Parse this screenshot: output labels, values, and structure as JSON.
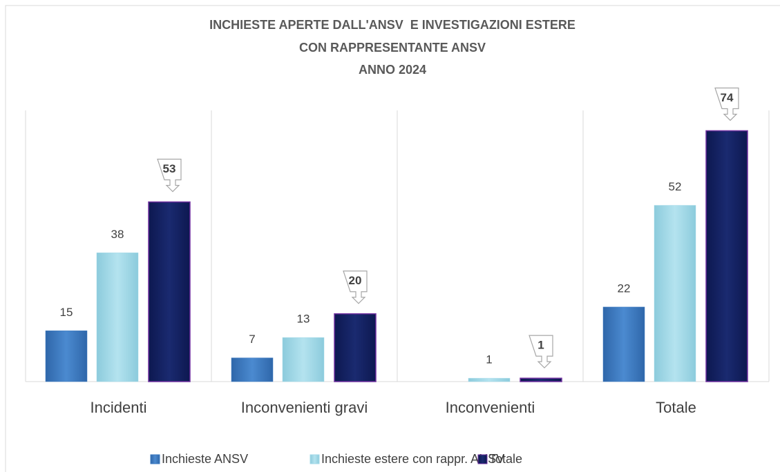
{
  "chart_data": {
    "type": "bar",
    "title": [
      "INCHIESTE APERTE DALL'ANSV  E INVESTIGAZIONI ESTERE",
      "CON RAPPRESENTANTE ANSV",
      "ANNO 2024"
    ],
    "categories": [
      "Incidenti",
      "Inconvenienti gravi",
      "Inconvenienti",
      "Totale"
    ],
    "series": [
      {
        "name": "Inchieste ANSV",
        "color": "#3a78c0",
        "values": [
          15,
          7,
          null,
          22
        ]
      },
      {
        "name": "Inchieste estere con rappr. ANSV",
        "color": "#a3d9e8",
        "values": [
          38,
          13,
          1,
          52
        ]
      },
      {
        "name": "Totale",
        "color": "#13205e",
        "values": [
          53,
          20,
          1,
          74
        ]
      }
    ],
    "ylim": [
      0,
      80
    ],
    "legend": "bottom"
  }
}
